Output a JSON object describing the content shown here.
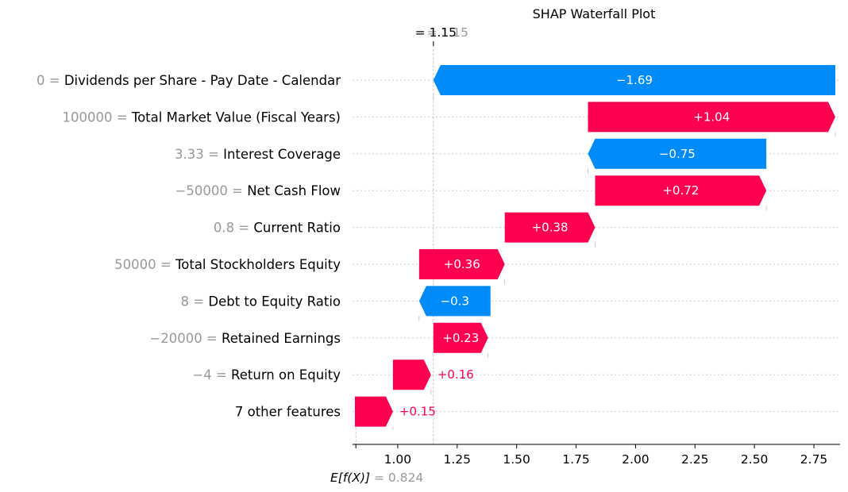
{
  "chart_data": {
    "type": "waterfall",
    "title": "SHAP Waterfall Plot",
    "xlabel": "",
    "ylabel": "",
    "xlim": [
      0.81,
      2.86
    ],
    "xticks": [
      1.0,
      1.25,
      1.5,
      1.75,
      2.0,
      2.25,
      2.5,
      2.75
    ],
    "xtick_labels": [
      "1.00",
      "1.25",
      "1.50",
      "1.75",
      "2.00",
      "2.25",
      "2.50",
      "2.75"
    ],
    "base_value": 0.824,
    "base_label": {
      "expr": "E[f(X)]",
      "value": "= 0.824"
    },
    "output_value": 1.15,
    "output_label": {
      "main": "= 1.15",
      "ghost": "= 1.15"
    },
    "features": [
      {
        "value": "0",
        "name": "Dividends per Share - Pay Date - Calendar",
        "shap": -1.69,
        "label": "−1.69",
        "start": 2.84,
        "end": 1.15
      },
      {
        "value": "100000",
        "name": "Total Market Value (Fiscal Years)",
        "shap": 1.04,
        "label": "+1.04",
        "start": 1.8,
        "end": 2.84
      },
      {
        "value": "3.33",
        "name": "Interest Coverage",
        "shap": -0.75,
        "label": "−0.75",
        "start": 2.55,
        "end": 1.8
      },
      {
        "value": "−50000",
        "name": "Net Cash Flow",
        "shap": 0.72,
        "label": "+0.72",
        "start": 1.83,
        "end": 2.55
      },
      {
        "value": "0.8",
        "name": "Current Ratio",
        "shap": 0.38,
        "label": "+0.38",
        "start": 1.45,
        "end": 1.83
      },
      {
        "value": "50000",
        "name": "Total Stockholders Equity",
        "shap": 0.36,
        "label": "+0.36",
        "start": 1.09,
        "end": 1.45
      },
      {
        "value": "8",
        "name": "Debt to Equity Ratio",
        "shap": -0.3,
        "label": "−0.3",
        "start": 1.39,
        "end": 1.09
      },
      {
        "value": "−20000",
        "name": "Retained Earnings",
        "shap": 0.23,
        "label": "+0.23",
        "start": 1.15,
        "end": 1.38
      },
      {
        "value": "−4",
        "name": "Return on Equity",
        "shap": 0.16,
        "label": "+0.16",
        "start": 0.98,
        "end": 1.14
      },
      {
        "value": "",
        "name": "7 other features",
        "shap": 0.15,
        "label": "+0.15",
        "start": 0.82,
        "end": 0.98
      }
    ],
    "colors": {
      "positive": "#ff0051",
      "negative": "#008bfb",
      "label_gray": "#999999",
      "grid": "#cccccc"
    },
    "grid": true,
    "legend": "none"
  }
}
